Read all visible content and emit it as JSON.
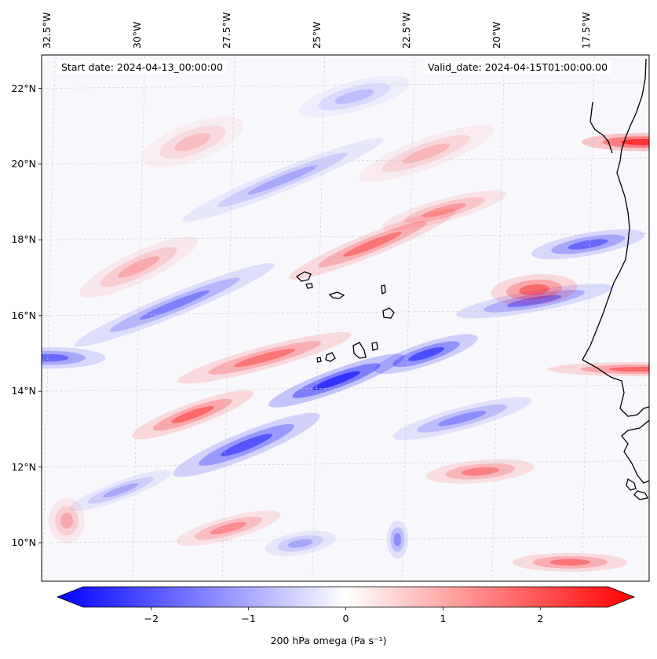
{
  "map": {
    "field": "200 hPa omega",
    "start_label": "Start date: 2024-04-13_00:00:00",
    "valid_label": "Valid_date: 2024-04-15T01:00:00.00",
    "extent": {
      "lon_min": -32.7,
      "lon_max": -15.8,
      "lat_min": 8.9,
      "lat_max": 22.8
    },
    "lon_ticks": [
      {
        "lon": -32.5,
        "label": "32.5°W"
      },
      {
        "lon": -30.0,
        "label": "30°W"
      },
      {
        "lon": -27.5,
        "label": "27.5°W"
      },
      {
        "lon": -25.0,
        "label": "25°W"
      },
      {
        "lon": -22.5,
        "label": "22.5°W"
      },
      {
        "lon": -20.0,
        "label": "20°W"
      },
      {
        "lon": -17.5,
        "label": "17.5°W"
      }
    ],
    "lat_ticks": [
      {
        "lat": 10,
        "label": "10°N"
      },
      {
        "lat": 12,
        "label": "12°N"
      },
      {
        "lat": 14,
        "label": "14°N"
      },
      {
        "lat": 16,
        "label": "16°N"
      },
      {
        "lat": 18,
        "label": "18°N"
      },
      {
        "lat": 20,
        "label": "20°N"
      },
      {
        "lat": 22,
        "label": "22°N"
      }
    ],
    "colors": {
      "negative": "#0000ff",
      "zero": "#ffffff",
      "positive": "#ff0000",
      "coast": "#000000",
      "grid": "#c8c8c8"
    },
    "features": [
      {
        "kind": "positive",
        "lon": -16.0,
        "lat": 20.5,
        "amp": 1.6,
        "sx": 0.25,
        "sy": 1.6,
        "ang": 90
      },
      {
        "kind": "positive",
        "lon": -16.0,
        "lat": 14.5,
        "amp": 1.0,
        "sx": 0.2,
        "sy": 2.5,
        "ang": 90
      },
      {
        "kind": "negative",
        "lon": -32.5,
        "lat": 14.8,
        "amp": -1.0,
        "sx": 0.3,
        "sy": 1.5,
        "ang": 90
      },
      {
        "kind": "negative",
        "lon": -24.5,
        "lat": 14.2,
        "amp": -1.6,
        "sx": 2.0,
        "sy": 0.3,
        "ang": 20
      },
      {
        "kind": "negative",
        "lon": -22.0,
        "lat": 14.9,
        "amp": -1.3,
        "sx": 1.5,
        "sy": 0.3,
        "ang": 18
      },
      {
        "kind": "negative",
        "lon": -27.0,
        "lat": 12.5,
        "amp": -1.2,
        "sx": 2.2,
        "sy": 0.35,
        "ang": 22
      },
      {
        "kind": "negative",
        "lon": -29.0,
        "lat": 16.2,
        "amp": -0.8,
        "sx": 3.0,
        "sy": 0.3,
        "ang": 22
      },
      {
        "kind": "negative",
        "lon": -26.0,
        "lat": 19.5,
        "amp": -0.5,
        "sx": 3.0,
        "sy": 0.3,
        "ang": 22
      },
      {
        "kind": "negative",
        "lon": -19.0,
        "lat": 16.3,
        "amp": -0.9,
        "sx": 2.2,
        "sy": 0.28,
        "ang": 10
      },
      {
        "kind": "negative",
        "lon": -17.5,
        "lat": 17.8,
        "amp": -1.0,
        "sx": 1.6,
        "sy": 0.3,
        "ang": 10
      },
      {
        "kind": "negative",
        "lon": -21.0,
        "lat": 13.2,
        "amp": -0.7,
        "sx": 2.0,
        "sy": 0.3,
        "ang": 15
      },
      {
        "kind": "negative",
        "lon": -30.5,
        "lat": 11.3,
        "amp": -0.5,
        "sx": 1.5,
        "sy": 0.25,
        "ang": 20
      },
      {
        "kind": "positive",
        "lon": -28.5,
        "lat": 13.3,
        "amp": 1.0,
        "sx": 1.8,
        "sy": 0.3,
        "ang": 20
      },
      {
        "kind": "positive",
        "lon": -26.5,
        "lat": 14.8,
        "amp": 0.9,
        "sx": 2.5,
        "sy": 0.3,
        "ang": 15
      },
      {
        "kind": "positive",
        "lon": -23.5,
        "lat": 17.8,
        "amp": 0.9,
        "sx": 2.5,
        "sy": 0.3,
        "ang": 22
      },
      {
        "kind": "positive",
        "lon": -21.5,
        "lat": 18.7,
        "amp": 0.6,
        "sx": 1.8,
        "sy": 0.3,
        "ang": 15
      },
      {
        "kind": "positive",
        "lon": -19.0,
        "lat": 16.6,
        "amp": 1.0,
        "sx": 1.2,
        "sy": 0.4,
        "ang": 5
      },
      {
        "kind": "positive",
        "lon": -20.5,
        "lat": 11.8,
        "amp": 0.8,
        "sx": 1.5,
        "sy": 0.3,
        "ang": 5
      },
      {
        "kind": "positive",
        "lon": -27.5,
        "lat": 10.3,
        "amp": 0.7,
        "sx": 1.5,
        "sy": 0.3,
        "ang": 15
      },
      {
        "kind": "positive",
        "lon": -18.0,
        "lat": 9.4,
        "amp": 0.9,
        "sx": 1.6,
        "sy": 0.25,
        "ang": 0
      },
      {
        "kind": "positive",
        "lon": -30.0,
        "lat": 17.2,
        "amp": 0.5,
        "sx": 1.8,
        "sy": 0.4,
        "ang": 25
      },
      {
        "kind": "positive",
        "lon": -22.0,
        "lat": 20.2,
        "amp": 0.4,
        "sx": 2.0,
        "sy": 0.4,
        "ang": 20
      },
      {
        "kind": "positive",
        "lon": -32.0,
        "lat": 10.5,
        "amp": 0.5,
        "sx": 0.5,
        "sy": 0.6,
        "ang": 0
      },
      {
        "kind": "negative",
        "lon": -25.5,
        "lat": 9.9,
        "amp": -0.5,
        "sx": 1.0,
        "sy": 0.3,
        "ang": 10
      },
      {
        "kind": "negative",
        "lon": -22.8,
        "lat": 10.0,
        "amp": -0.7,
        "sx": 0.3,
        "sy": 0.5,
        "ang": 0
      },
      {
        "kind": "positive",
        "lon": -28.5,
        "lat": 20.5,
        "amp": 0.35,
        "sx": 1.5,
        "sy": 0.5,
        "ang": 20
      },
      {
        "kind": "negative",
        "lon": -24.0,
        "lat": 21.7,
        "amp": -0.35,
        "sx": 1.6,
        "sy": 0.4,
        "ang": 15
      }
    ]
  },
  "colorbar": {
    "vmin": -2.7,
    "vmax": 2.7,
    "ticks": [
      {
        "value": -2,
        "label": "−2"
      },
      {
        "value": -1,
        "label": "−1"
      },
      {
        "value": 0,
        "label": "0"
      },
      {
        "value": 1,
        "label": "1"
      },
      {
        "value": 2,
        "label": "2"
      }
    ],
    "label": "200 hPa omega (Pa s⁻¹)"
  }
}
